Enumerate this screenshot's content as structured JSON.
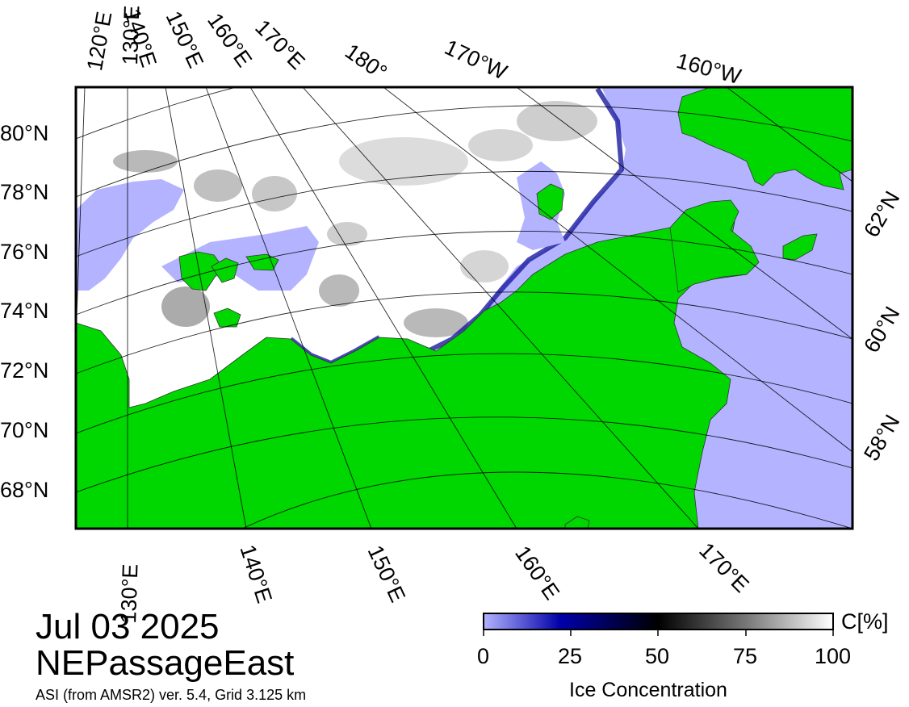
{
  "map": {
    "date": "Jul 03 2025",
    "region": "NEPassageEast",
    "source_note": "ASI (from AMSR2) ver. 5.4,  Grid 3.125 km",
    "colors": {
      "land": "#00d700",
      "open_water": "#b3b3ff",
      "ice_high": "#ffffff",
      "ice_mid": "#000000",
      "ice_low": "#0000aa",
      "frame": "#000000"
    },
    "lat_labels_left": [
      "80°N",
      "78°N",
      "76°N",
      "74°N",
      "72°N",
      "70°N",
      "68°N"
    ],
    "lat_labels_right": [
      "62°N",
      "60°N",
      "58°N"
    ],
    "lon_labels_top": [
      "120°E",
      "130°E",
      "140°E",
      "150°E",
      "160°E",
      "170°E",
      "180°",
      "170°W",
      "160°W"
    ],
    "lon_labels_bottom": [
      "130°E",
      "140°E",
      "150°E",
      "160°E",
      "170°E"
    ]
  },
  "colorbar": {
    "ticks": [
      "0",
      "25",
      "50",
      "75",
      "100"
    ],
    "unit": "C[%]",
    "title": "Ice Concentration"
  }
}
